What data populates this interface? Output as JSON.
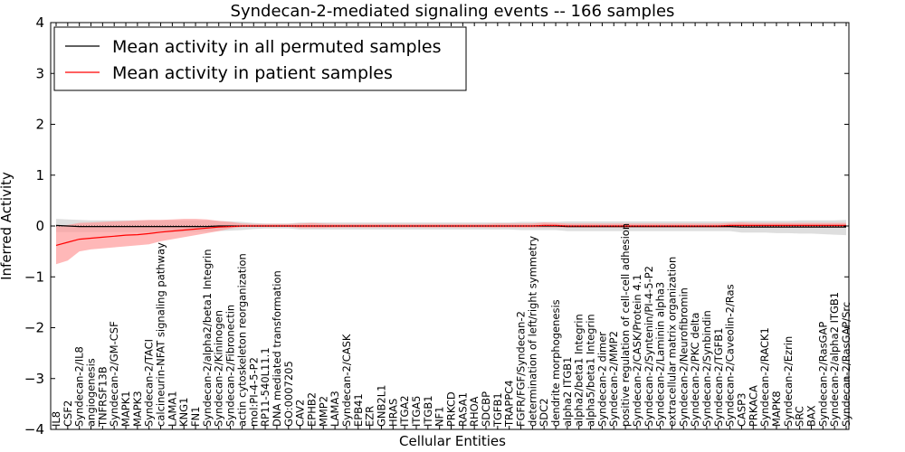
{
  "chart_data": {
    "type": "line",
    "title": "Syndecan-2-mediated signaling events -- 166 samples",
    "xlabel": "Cellular Entities",
    "ylabel": "Inferred Activity",
    "ylim": [
      -4,
      4
    ],
    "yticks": [
      -4,
      -3,
      -2,
      -1,
      0,
      1,
      2,
      3,
      4
    ],
    "legend_position": "top-left",
    "categories": [
      "IL8",
      "CSF2",
      "Syndecan-2/IL8",
      "angiogenesis",
      "TNFRSF13B",
      "Syndecan-2/GM-CSF",
      "MAPK1",
      "MAPK3",
      "Syndecan-2/TACI",
      "calcineurin-NFAT signaling pathway",
      "LAMA1",
      "KNG1",
      "FN1",
      "Syndecan-2/alpha2/beta1 Integrin",
      "Syndecan-2/Kininogen",
      "Syndecan-2/Fibronectin",
      "actin cytoskeleton reorganization",
      "mol:PI-4-5-P2",
      "RP11-540L11.1",
      "DNA mediated transformation",
      "GO:0007205",
      "CAV2",
      "EPHB2",
      "MMP2",
      "LAMA3",
      "Syndecan-2/CASK",
      "EPB41",
      "EZR",
      "GNB2L1",
      "HRAS",
      "ITGA2",
      "ITGA5",
      "ITGB1",
      "NF1",
      "PRKCD",
      "RASA1",
      "RHOA",
      "SDCBP",
      "TGFB1",
      "TRAPPC4",
      "FGFR/FGF/Syndecan-2",
      "determination of left/right symmetry",
      "SDC2",
      "dendrite morphogenesis",
      "alpha2 ITGB1",
      "alpha2/beta1 Integrin",
      "alpha5/beta1 Integrin",
      "Syndecan-2 dimer",
      "Syndecan-2/MMP2",
      "positive regulation of cell-cell adhesion",
      "Syndecan-2/CASK/Protein 4.1",
      "Syndecan-2/Syntenin/PI-4-5-P2",
      "Syndecan-2/Laminin alpha3",
      "extracellular matrix organization",
      "Syndecan-2/Neurofibromin",
      "Syndecan-2/PKC delta",
      "Syndecan-2/Synbindin",
      "Syndecan-2/TGFB1",
      "Syndecan-2/Caveolin-2/Ras",
      "CASP3",
      "PRKACA",
      "Syndecan-2/RACK1",
      "MAPK8",
      "Syndecan-2/Ezrin",
      "SRC",
      "BAX",
      "Syndecan-2/RasGAP",
      "Syndecan-2/alpha2 ITGB1",
      "Syndecan-2/RasGAP/Src"
    ],
    "series": [
      {
        "name": "Mean activity in all permuted samples",
        "color": "#000000",
        "band_color": "#c8c8c8",
        "values": [
          0.01,
          0.0,
          -0.01,
          -0.01,
          -0.01,
          -0.01,
          -0.01,
          -0.01,
          -0.01,
          -0.01,
          -0.01,
          -0.01,
          -0.01,
          -0.01,
          0.0,
          0.0,
          0.0,
          0.0,
          0.0,
          0.0,
          0.0,
          0.0,
          0.0,
          0.0,
          0.0,
          0.0,
          0.0,
          0.0,
          0.0,
          0.0,
          0.0,
          0.0,
          0.0,
          0.0,
          0.0,
          0.0,
          0.0,
          0.0,
          0.0,
          0.0,
          0.0,
          0.0,
          0.0,
          0.0,
          -0.01,
          -0.01,
          -0.01,
          -0.01,
          -0.01,
          -0.01,
          -0.01,
          -0.01,
          -0.01,
          -0.01,
          -0.01,
          -0.01,
          -0.01,
          -0.01,
          -0.01,
          -0.02,
          -0.02,
          -0.02,
          -0.02,
          -0.02,
          -0.02,
          -0.02,
          -0.02,
          -0.02,
          -0.02
        ],
        "lower": [
          -0.12,
          -0.12,
          -0.12,
          -0.12,
          -0.12,
          -0.12,
          -0.12,
          -0.12,
          -0.12,
          -0.12,
          -0.12,
          -0.12,
          -0.11,
          -0.11,
          -0.1,
          -0.09,
          -0.08,
          -0.06,
          -0.05,
          -0.05,
          -0.05,
          -0.07,
          -0.07,
          -0.07,
          -0.07,
          -0.07,
          -0.07,
          -0.07,
          -0.07,
          -0.07,
          -0.07,
          -0.07,
          -0.07,
          -0.07,
          -0.07,
          -0.07,
          -0.07,
          -0.07,
          -0.07,
          -0.07,
          -0.08,
          -0.08,
          -0.08,
          -0.08,
          -0.1,
          -0.1,
          -0.1,
          -0.1,
          -0.1,
          -0.1,
          -0.1,
          -0.1,
          -0.1,
          -0.1,
          -0.1,
          -0.1,
          -0.1,
          -0.1,
          -0.1,
          -0.13,
          -0.13,
          -0.13,
          -0.14,
          -0.14,
          -0.15,
          -0.15,
          -0.16,
          -0.17,
          -0.18
        ],
        "upper": [
          0.14,
          0.13,
          0.12,
          0.11,
          0.11,
          0.11,
          0.11,
          0.11,
          0.11,
          0.11,
          0.11,
          0.11,
          0.11,
          0.11,
          0.1,
          0.09,
          0.08,
          0.06,
          0.05,
          0.05,
          0.05,
          0.07,
          0.07,
          0.07,
          0.07,
          0.07,
          0.07,
          0.07,
          0.07,
          0.07,
          0.07,
          0.07,
          0.07,
          0.07,
          0.07,
          0.07,
          0.07,
          0.07,
          0.07,
          0.07,
          0.08,
          0.08,
          0.08,
          0.08,
          0.09,
          0.09,
          0.09,
          0.09,
          0.09,
          0.09,
          0.09,
          0.09,
          0.09,
          0.09,
          0.09,
          0.09,
          0.09,
          0.09,
          0.09,
          0.1,
          0.1,
          0.1,
          0.1,
          0.1,
          0.11,
          0.11,
          0.11,
          0.11,
          0.12
        ]
      },
      {
        "name": "Mean activity in patient samples",
        "color": "#ff0000",
        "band_color": "#ff9a9a",
        "values": [
          -0.38,
          -0.32,
          -0.26,
          -0.24,
          -0.22,
          -0.2,
          -0.18,
          -0.17,
          -0.15,
          -0.12,
          -0.1,
          -0.08,
          -0.06,
          -0.04,
          -0.02,
          -0.01,
          0.0,
          0.0,
          0.0,
          0.0,
          0.0,
          0.0,
          0.0,
          0.0,
          0.0,
          0.0,
          0.0,
          0.0,
          0.0,
          0.0,
          0.0,
          0.0,
          0.0,
          0.0,
          0.0,
          0.0,
          0.0,
          0.0,
          0.0,
          0.0,
          0.0,
          0.0,
          0.01,
          0.01,
          0.0,
          0.0,
          0.0,
          0.0,
          0.0,
          0.0,
          0.0,
          0.0,
          0.0,
          0.0,
          0.0,
          0.0,
          0.0,
          0.0,
          0.01,
          0.01,
          0.01,
          0.01,
          0.01,
          0.01,
          0.01,
          0.01,
          0.01,
          0.01,
          0.01
        ],
        "lower": [
          -0.75,
          -0.68,
          -0.5,
          -0.46,
          -0.44,
          -0.42,
          -0.4,
          -0.38,
          -0.36,
          -0.3,
          -0.26,
          -0.22,
          -0.18,
          -0.14,
          -0.1,
          -0.05,
          -0.02,
          -0.02,
          -0.02,
          -0.02,
          -0.02,
          -0.04,
          -0.04,
          -0.04,
          -0.03,
          -0.03,
          -0.03,
          -0.03,
          -0.03,
          -0.03,
          -0.03,
          -0.03,
          -0.03,
          -0.03,
          -0.03,
          -0.03,
          -0.03,
          -0.03,
          -0.03,
          -0.03,
          -0.03,
          -0.03,
          -0.03,
          -0.03,
          -0.03,
          -0.03,
          -0.03,
          -0.03,
          -0.03,
          -0.03,
          -0.03,
          -0.03,
          -0.03,
          -0.03,
          -0.03,
          -0.03,
          -0.03,
          -0.03,
          -0.03,
          -0.03,
          -0.03,
          -0.03,
          -0.03,
          -0.03,
          -0.03,
          -0.03,
          -0.03,
          -0.03,
          -0.03
        ],
        "upper": [
          0.0,
          0.02,
          0.06,
          0.07,
          0.08,
          0.09,
          0.1,
          0.11,
          0.12,
          0.12,
          0.13,
          0.14,
          0.14,
          0.13,
          0.1,
          0.08,
          0.05,
          0.04,
          0.04,
          0.04,
          0.04,
          0.05,
          0.06,
          0.05,
          0.04,
          0.04,
          0.04,
          0.04,
          0.04,
          0.04,
          0.04,
          0.04,
          0.04,
          0.04,
          0.04,
          0.04,
          0.04,
          0.04,
          0.05,
          0.05,
          0.05,
          0.05,
          0.07,
          0.06,
          0.05,
          0.05,
          0.05,
          0.05,
          0.05,
          0.05,
          0.05,
          0.05,
          0.05,
          0.05,
          0.05,
          0.05,
          0.05,
          0.05,
          0.06,
          0.07,
          0.06,
          0.06,
          0.06,
          0.06,
          0.06,
          0.06,
          0.06,
          0.06,
          0.06
        ]
      }
    ]
  }
}
